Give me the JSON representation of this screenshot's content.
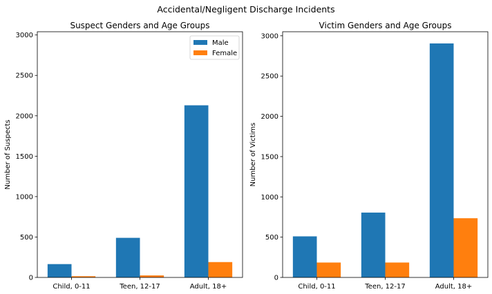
{
  "figure": {
    "suptitle": "Accidental/Negligent Discharge Incidents",
    "colors": {
      "male": "#1f77b4",
      "female": "#ff7f0e"
    }
  },
  "chart_data": [
    {
      "type": "bar",
      "title": "Suspect Genders and Age Groups",
      "xlabel": "",
      "ylabel": "Number of Suspects",
      "categories": [
        "Child, 0-11",
        "Teen, 12-17",
        "Adult, 18+"
      ],
      "series": [
        {
          "name": "Male",
          "values": [
            165,
            490,
            2130
          ]
        },
        {
          "name": "Female",
          "values": [
            15,
            25,
            190
          ]
        }
      ],
      "ylim": [
        0,
        3040
      ],
      "yticks": [
        0,
        500,
        1000,
        1500,
        2000,
        2500,
        3000
      ],
      "legend": "top-right",
      "grid": false
    },
    {
      "type": "bar",
      "title": "Victim Genders and Age Groups",
      "xlabel": "",
      "ylabel": "Number of Victims",
      "categories": [
        "Child, 0-11",
        "Teen, 12-17",
        "Adult, 18+"
      ],
      "series": [
        {
          "name": "Male",
          "values": [
            510,
            805,
            2905
          ]
        },
        {
          "name": "Female",
          "values": [
            185,
            185,
            735
          ]
        }
      ],
      "ylim": [
        0,
        3050
      ],
      "yticks": [
        0,
        500,
        1000,
        1500,
        2000,
        2500,
        3000
      ],
      "grid": false
    }
  ]
}
